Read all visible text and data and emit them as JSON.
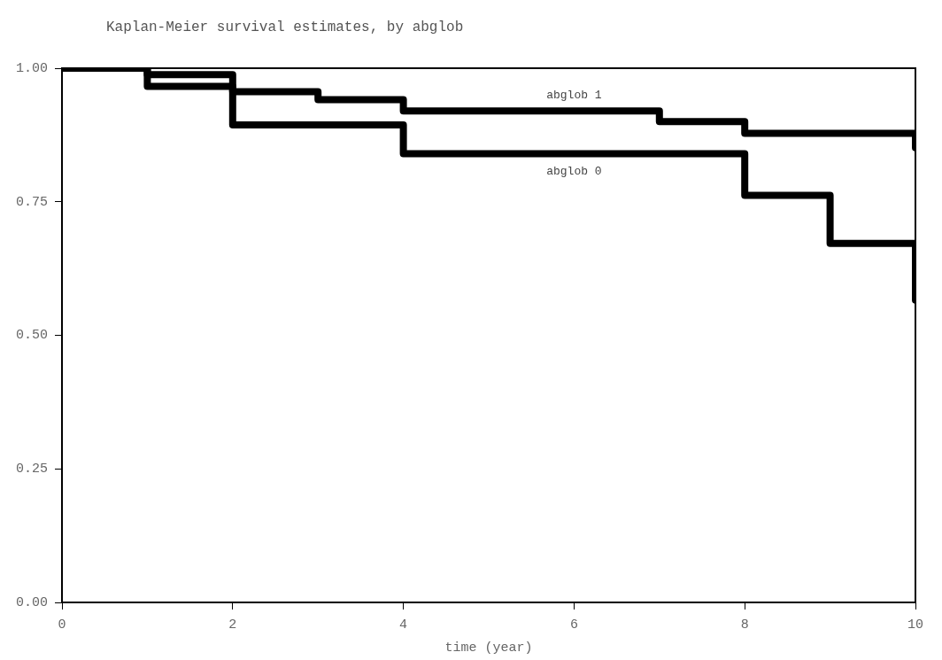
{
  "chart_data": {
    "type": "step",
    "title": "Kaplan-Meier survival estimates, by abglob",
    "xlabel": "time (year)",
    "series": [
      {
        "name": "abglob 1",
        "color": "#000000",
        "x": [
          0,
          1,
          2,
          3,
          4,
          7,
          8,
          10
        ],
        "values": [
          1,
          0.988,
          0.956,
          0.941,
          0.92,
          0.9,
          0.878,
          0.851
        ]
      },
      {
        "name": "abglob 0",
        "color": "#000000",
        "x": [
          0,
          1,
          2,
          4,
          8,
          9,
          10
        ],
        "values": [
          1,
          0.966,
          0.894,
          0.84,
          0.762,
          0.672,
          0.566
        ]
      }
    ],
    "xlim": [
      0,
      10
    ],
    "xticks": [
      0,
      2,
      4,
      6,
      8,
      10
    ],
    "ylim": [
      0,
      1
    ],
    "yticks": [
      {
        "value": 0,
        "label": "0.00"
      },
      {
        "value": 0.25,
        "label": "0.25"
      },
      {
        "value": 0.5,
        "label": "0.50"
      },
      {
        "value": 0.75,
        "label": "0.75"
      },
      {
        "value": 1,
        "label": "1.00"
      }
    ],
    "grid": false,
    "legend": false,
    "marker": "none",
    "line_style": "solid"
  }
}
